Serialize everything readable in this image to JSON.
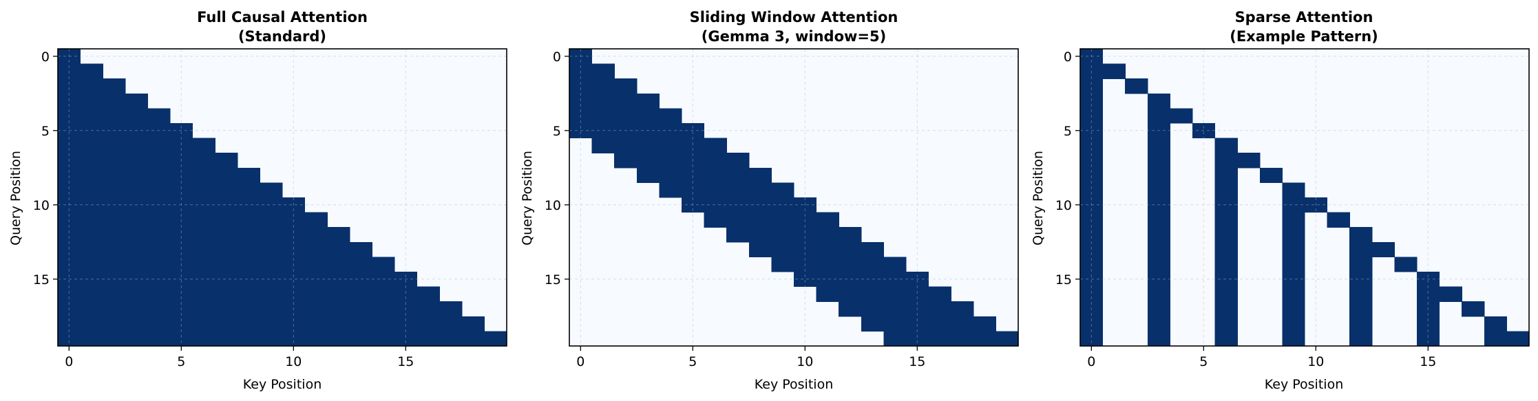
{
  "figure": {
    "panels": [
      {
        "title_line1": "Full Causal Attention",
        "title_line2": "(Standard)",
        "xlabel": "Key Position",
        "ylabel": "Query Position"
      },
      {
        "title_line1": "Sliding Window Attention",
        "title_line2": "(Gemma 3, window=5)",
        "xlabel": "Key Position",
        "ylabel": "Query Position"
      },
      {
        "title_line1": "Sparse Attention",
        "title_line2": "(Example Pattern)",
        "xlabel": "Key Position",
        "ylabel": "Query Position"
      }
    ]
  },
  "chart_data": [
    {
      "type": "heatmap",
      "title": "Full Causal Attention\n(Standard)",
      "xlabel": "Key Position",
      "ylabel": "Query Position",
      "size": 20,
      "pattern": "causal",
      "xticks": [
        0,
        5,
        10,
        15
      ],
      "yticks": [
        0,
        5,
        10,
        15
      ],
      "grid": true,
      "colors": {
        "attend": "#08306b",
        "masked": "#f7fbff"
      },
      "matrix": [
        [
          1,
          0,
          0,
          0,
          0,
          0,
          0,
          0,
          0,
          0,
          0,
          0,
          0,
          0,
          0,
          0,
          0,
          0,
          0,
          0
        ],
        [
          1,
          1,
          0,
          0,
          0,
          0,
          0,
          0,
          0,
          0,
          0,
          0,
          0,
          0,
          0,
          0,
          0,
          0,
          0,
          0
        ],
        [
          1,
          1,
          1,
          0,
          0,
          0,
          0,
          0,
          0,
          0,
          0,
          0,
          0,
          0,
          0,
          0,
          0,
          0,
          0,
          0
        ],
        [
          1,
          1,
          1,
          1,
          0,
          0,
          0,
          0,
          0,
          0,
          0,
          0,
          0,
          0,
          0,
          0,
          0,
          0,
          0,
          0
        ],
        [
          1,
          1,
          1,
          1,
          1,
          0,
          0,
          0,
          0,
          0,
          0,
          0,
          0,
          0,
          0,
          0,
          0,
          0,
          0,
          0
        ],
        [
          1,
          1,
          1,
          1,
          1,
          1,
          0,
          0,
          0,
          0,
          0,
          0,
          0,
          0,
          0,
          0,
          0,
          0,
          0,
          0
        ],
        [
          1,
          1,
          1,
          1,
          1,
          1,
          1,
          0,
          0,
          0,
          0,
          0,
          0,
          0,
          0,
          0,
          0,
          0,
          0,
          0
        ],
        [
          1,
          1,
          1,
          1,
          1,
          1,
          1,
          1,
          0,
          0,
          0,
          0,
          0,
          0,
          0,
          0,
          0,
          0,
          0,
          0
        ],
        [
          1,
          1,
          1,
          1,
          1,
          1,
          1,
          1,
          1,
          0,
          0,
          0,
          0,
          0,
          0,
          0,
          0,
          0,
          0,
          0
        ],
        [
          1,
          1,
          1,
          1,
          1,
          1,
          1,
          1,
          1,
          1,
          0,
          0,
          0,
          0,
          0,
          0,
          0,
          0,
          0,
          0
        ],
        [
          1,
          1,
          1,
          1,
          1,
          1,
          1,
          1,
          1,
          1,
          1,
          0,
          0,
          0,
          0,
          0,
          0,
          0,
          0,
          0
        ],
        [
          1,
          1,
          1,
          1,
          1,
          1,
          1,
          1,
          1,
          1,
          1,
          1,
          0,
          0,
          0,
          0,
          0,
          0,
          0,
          0
        ],
        [
          1,
          1,
          1,
          1,
          1,
          1,
          1,
          1,
          1,
          1,
          1,
          1,
          1,
          0,
          0,
          0,
          0,
          0,
          0,
          0
        ],
        [
          1,
          1,
          1,
          1,
          1,
          1,
          1,
          1,
          1,
          1,
          1,
          1,
          1,
          1,
          0,
          0,
          0,
          0,
          0,
          0
        ],
        [
          1,
          1,
          1,
          1,
          1,
          1,
          1,
          1,
          1,
          1,
          1,
          1,
          1,
          1,
          1,
          0,
          0,
          0,
          0,
          0
        ],
        [
          1,
          1,
          1,
          1,
          1,
          1,
          1,
          1,
          1,
          1,
          1,
          1,
          1,
          1,
          1,
          1,
          0,
          0,
          0,
          0
        ],
        [
          1,
          1,
          1,
          1,
          1,
          1,
          1,
          1,
          1,
          1,
          1,
          1,
          1,
          1,
          1,
          1,
          1,
          0,
          0,
          0
        ],
        [
          1,
          1,
          1,
          1,
          1,
          1,
          1,
          1,
          1,
          1,
          1,
          1,
          1,
          1,
          1,
          1,
          1,
          1,
          0,
          0
        ],
        [
          1,
          1,
          1,
          1,
          1,
          1,
          1,
          1,
          1,
          1,
          1,
          1,
          1,
          1,
          1,
          1,
          1,
          1,
          1,
          0
        ],
        [
          1,
          1,
          1,
          1,
          1,
          1,
          1,
          1,
          1,
          1,
          1,
          1,
          1,
          1,
          1,
          1,
          1,
          1,
          1,
          1
        ]
      ]
    },
    {
      "type": "heatmap",
      "title": "Sliding Window Attention\n(Gemma 3, window=5)",
      "xlabel": "Key Position",
      "ylabel": "Query Position",
      "size": 20,
      "pattern": "sliding_window",
      "window": 5,
      "xticks": [
        0,
        5,
        10,
        15
      ],
      "yticks": [
        0,
        5,
        10,
        15
      ],
      "grid": true,
      "colors": {
        "attend": "#08306b",
        "masked": "#f7fbff"
      },
      "matrix": [
        [
          1,
          0,
          0,
          0,
          0,
          0,
          0,
          0,
          0,
          0,
          0,
          0,
          0,
          0,
          0,
          0,
          0,
          0,
          0,
          0
        ],
        [
          1,
          1,
          0,
          0,
          0,
          0,
          0,
          0,
          0,
          0,
          0,
          0,
          0,
          0,
          0,
          0,
          0,
          0,
          0,
          0
        ],
        [
          1,
          1,
          1,
          0,
          0,
          0,
          0,
          0,
          0,
          0,
          0,
          0,
          0,
          0,
          0,
          0,
          0,
          0,
          0,
          0
        ],
        [
          1,
          1,
          1,
          1,
          0,
          0,
          0,
          0,
          0,
          0,
          0,
          0,
          0,
          0,
          0,
          0,
          0,
          0,
          0,
          0
        ],
        [
          1,
          1,
          1,
          1,
          1,
          0,
          0,
          0,
          0,
          0,
          0,
          0,
          0,
          0,
          0,
          0,
          0,
          0,
          0,
          0
        ],
        [
          1,
          1,
          1,
          1,
          1,
          1,
          0,
          0,
          0,
          0,
          0,
          0,
          0,
          0,
          0,
          0,
          0,
          0,
          0,
          0
        ],
        [
          0,
          1,
          1,
          1,
          1,
          1,
          1,
          0,
          0,
          0,
          0,
          0,
          0,
          0,
          0,
          0,
          0,
          0,
          0,
          0
        ],
        [
          0,
          0,
          1,
          1,
          1,
          1,
          1,
          1,
          0,
          0,
          0,
          0,
          0,
          0,
          0,
          0,
          0,
          0,
          0,
          0
        ],
        [
          0,
          0,
          0,
          1,
          1,
          1,
          1,
          1,
          1,
          0,
          0,
          0,
          0,
          0,
          0,
          0,
          0,
          0,
          0,
          0
        ],
        [
          0,
          0,
          0,
          0,
          1,
          1,
          1,
          1,
          1,
          1,
          0,
          0,
          0,
          0,
          0,
          0,
          0,
          0,
          0,
          0
        ],
        [
          0,
          0,
          0,
          0,
          0,
          1,
          1,
          1,
          1,
          1,
          1,
          0,
          0,
          0,
          0,
          0,
          0,
          0,
          0,
          0
        ],
        [
          0,
          0,
          0,
          0,
          0,
          0,
          1,
          1,
          1,
          1,
          1,
          1,
          0,
          0,
          0,
          0,
          0,
          0,
          0,
          0
        ],
        [
          0,
          0,
          0,
          0,
          0,
          0,
          0,
          1,
          1,
          1,
          1,
          1,
          1,
          0,
          0,
          0,
          0,
          0,
          0,
          0
        ],
        [
          0,
          0,
          0,
          0,
          0,
          0,
          0,
          0,
          1,
          1,
          1,
          1,
          1,
          1,
          0,
          0,
          0,
          0,
          0,
          0
        ],
        [
          0,
          0,
          0,
          0,
          0,
          0,
          0,
          0,
          0,
          1,
          1,
          1,
          1,
          1,
          1,
          0,
          0,
          0,
          0,
          0
        ],
        [
          0,
          0,
          0,
          0,
          0,
          0,
          0,
          0,
          0,
          0,
          1,
          1,
          1,
          1,
          1,
          1,
          0,
          0,
          0,
          0
        ],
        [
          0,
          0,
          0,
          0,
          0,
          0,
          0,
          0,
          0,
          0,
          0,
          1,
          1,
          1,
          1,
          1,
          1,
          0,
          0,
          0
        ],
        [
          0,
          0,
          0,
          0,
          0,
          0,
          0,
          0,
          0,
          0,
          0,
          0,
          1,
          1,
          1,
          1,
          1,
          1,
          0,
          0
        ],
        [
          0,
          0,
          0,
          0,
          0,
          0,
          0,
          0,
          0,
          0,
          0,
          0,
          0,
          1,
          1,
          1,
          1,
          1,
          1,
          0
        ],
        [
          0,
          0,
          0,
          0,
          0,
          0,
          0,
          0,
          0,
          0,
          0,
          0,
          0,
          0,
          1,
          1,
          1,
          1,
          1,
          1
        ]
      ]
    },
    {
      "type": "heatmap",
      "title": "Sparse Attention\n(Example Pattern)",
      "xlabel": "Key Position",
      "ylabel": "Query Position",
      "size": 20,
      "pattern": "sparse",
      "xticks": [
        0,
        5,
        10,
        15
      ],
      "yticks": [
        0,
        5,
        10,
        15
      ],
      "grid": true,
      "colors": {
        "attend": "#08306b",
        "masked": "#f7fbff"
      },
      "matrix": [
        [
          1,
          0,
          0,
          0,
          0,
          0,
          0,
          0,
          0,
          0,
          0,
          0,
          0,
          0,
          0,
          0,
          0,
          0,
          0,
          0
        ],
        [
          1,
          1,
          0,
          0,
          0,
          0,
          0,
          0,
          0,
          0,
          0,
          0,
          0,
          0,
          0,
          0,
          0,
          0,
          0,
          0
        ],
        [
          1,
          0,
          1,
          0,
          0,
          0,
          0,
          0,
          0,
          0,
          0,
          0,
          0,
          0,
          0,
          0,
          0,
          0,
          0,
          0
        ],
        [
          1,
          0,
          0,
          1,
          0,
          0,
          0,
          0,
          0,
          0,
          0,
          0,
          0,
          0,
          0,
          0,
          0,
          0,
          0,
          0
        ],
        [
          1,
          0,
          0,
          1,
          1,
          0,
          0,
          0,
          0,
          0,
          0,
          0,
          0,
          0,
          0,
          0,
          0,
          0,
          0,
          0
        ],
        [
          1,
          0,
          0,
          1,
          0,
          1,
          0,
          0,
          0,
          0,
          0,
          0,
          0,
          0,
          0,
          0,
          0,
          0,
          0,
          0
        ],
        [
          1,
          0,
          0,
          1,
          0,
          0,
          1,
          0,
          0,
          0,
          0,
          0,
          0,
          0,
          0,
          0,
          0,
          0,
          0,
          0
        ],
        [
          1,
          0,
          0,
          1,
          0,
          0,
          1,
          1,
          0,
          0,
          0,
          0,
          0,
          0,
          0,
          0,
          0,
          0,
          0,
          0
        ],
        [
          1,
          0,
          0,
          1,
          0,
          0,
          1,
          0,
          1,
          0,
          0,
          0,
          0,
          0,
          0,
          0,
          0,
          0,
          0,
          0
        ],
        [
          1,
          0,
          0,
          1,
          0,
          0,
          1,
          0,
          0,
          1,
          0,
          0,
          0,
          0,
          0,
          0,
          0,
          0,
          0,
          0
        ],
        [
          1,
          0,
          0,
          1,
          0,
          0,
          1,
          0,
          0,
          1,
          1,
          0,
          0,
          0,
          0,
          0,
          0,
          0,
          0,
          0
        ],
        [
          1,
          0,
          0,
          1,
          0,
          0,
          1,
          0,
          0,
          1,
          0,
          1,
          0,
          0,
          0,
          0,
          0,
          0,
          0,
          0
        ],
        [
          1,
          0,
          0,
          1,
          0,
          0,
          1,
          0,
          0,
          1,
          0,
          0,
          1,
          0,
          0,
          0,
          0,
          0,
          0,
          0
        ],
        [
          1,
          0,
          0,
          1,
          0,
          0,
          1,
          0,
          0,
          1,
          0,
          0,
          1,
          1,
          0,
          0,
          0,
          0,
          0,
          0
        ],
        [
          1,
          0,
          0,
          1,
          0,
          0,
          1,
          0,
          0,
          1,
          0,
          0,
          1,
          0,
          1,
          0,
          0,
          0,
          0,
          0
        ],
        [
          1,
          0,
          0,
          1,
          0,
          0,
          1,
          0,
          0,
          1,
          0,
          0,
          1,
          0,
          0,
          1,
          0,
          0,
          0,
          0
        ],
        [
          1,
          0,
          0,
          1,
          0,
          0,
          1,
          0,
          0,
          1,
          0,
          0,
          1,
          0,
          0,
          1,
          1,
          0,
          0,
          0
        ],
        [
          1,
          0,
          0,
          1,
          0,
          0,
          1,
          0,
          0,
          1,
          0,
          0,
          1,
          0,
          0,
          1,
          0,
          1,
          0,
          0
        ],
        [
          1,
          0,
          0,
          1,
          0,
          0,
          1,
          0,
          0,
          1,
          0,
          0,
          1,
          0,
          0,
          1,
          0,
          0,
          1,
          0
        ],
        [
          1,
          0,
          0,
          1,
          0,
          0,
          1,
          0,
          0,
          1,
          0,
          0,
          1,
          0,
          0,
          1,
          0,
          0,
          1,
          1
        ]
      ]
    }
  ]
}
